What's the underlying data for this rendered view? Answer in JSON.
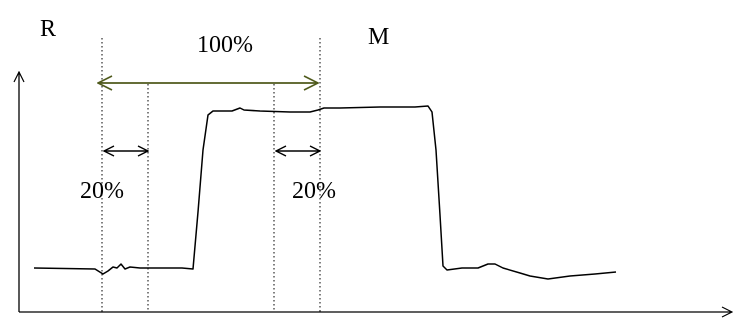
{
  "labels": {
    "axis_y": "R",
    "axis_x_marker": "M",
    "span_full": "100%",
    "span_left": "20%",
    "span_right": "20%"
  },
  "colors": {
    "curve": "#000000",
    "axes": "#000000",
    "guides": "#000000",
    "span_full_arrow": "#4f5a1c",
    "span_small_arrows": "#000000"
  }
}
